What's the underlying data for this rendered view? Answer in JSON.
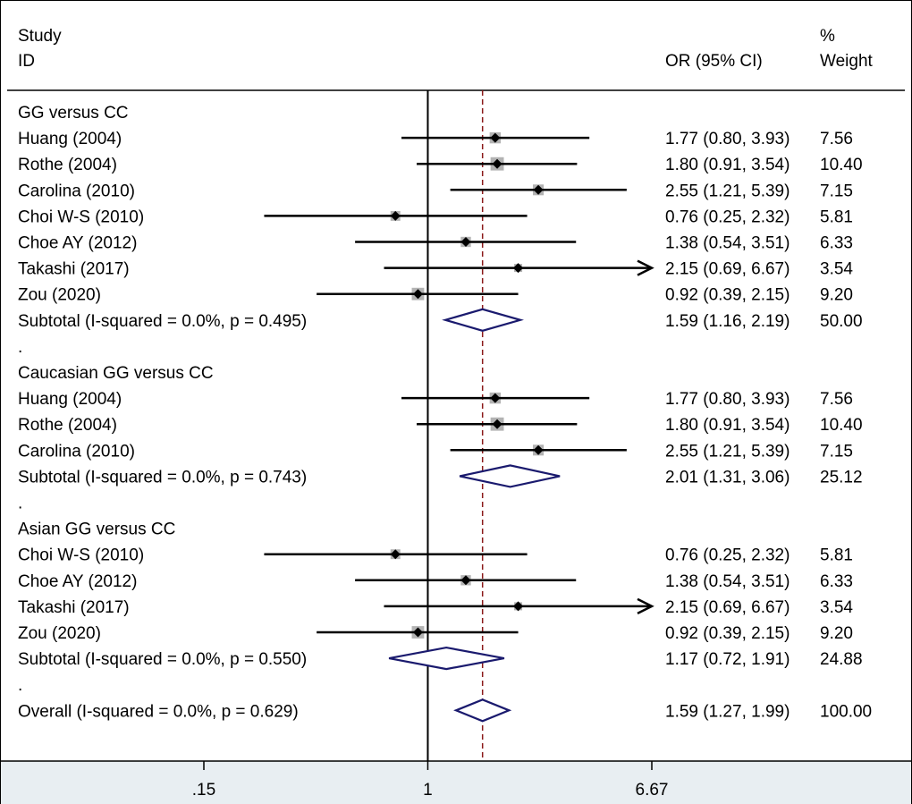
{
  "chart_data": {
    "type": "forest",
    "headers": {
      "study_line1": "Study",
      "study_line2": "ID",
      "or_label": "OR (95% CI)",
      "weight_line1": "%",
      "weight_line2": "Weight"
    },
    "x_scale": "log",
    "x_ticks": [
      {
        "value": 0.15,
        "label": ".15"
      },
      {
        "value": 1,
        "label": "1"
      },
      {
        "value": 6.67,
        "label": "6.67"
      }
    ],
    "xlim": [
      0.15,
      6.67
    ],
    "null_value": 1,
    "overall_or": 1.59,
    "rows": [
      {
        "kind": "group",
        "label": "GG versus CC"
      },
      {
        "kind": "study",
        "label": "Huang  (2004)",
        "or": 1.77,
        "lo": 0.8,
        "hi": 3.93,
        "or_text": "1.77 (0.80, 3.93)",
        "weight": "7.56"
      },
      {
        "kind": "study",
        "label": "Rothe (2004)",
        "or": 1.8,
        "lo": 0.91,
        "hi": 3.54,
        "or_text": "1.80 (0.91, 3.54)",
        "weight": "10.40"
      },
      {
        "kind": "study",
        "label": "Carolina (2010)",
        "or": 2.55,
        "lo": 1.21,
        "hi": 5.39,
        "or_text": "2.55 (1.21, 5.39)",
        "weight": "7.15"
      },
      {
        "kind": "study",
        "label": "Choi W-S (2010)",
        "or": 0.76,
        "lo": 0.25,
        "hi": 2.32,
        "or_text": "0.76 (0.25, 2.32)",
        "weight": "5.81"
      },
      {
        "kind": "study",
        "label": "Choe AY (2012)",
        "or": 1.38,
        "lo": 0.54,
        "hi": 3.51,
        "or_text": "1.38 (0.54, 3.51)",
        "weight": "6.33"
      },
      {
        "kind": "study",
        "label": "Takashi (2017)",
        "or": 2.15,
        "lo": 0.69,
        "hi": 6.67,
        "or_text": "2.15 (0.69, 6.67)",
        "weight": "3.54",
        "arrow": true
      },
      {
        "kind": "study",
        "label": "Zou (2020)",
        "or": 0.92,
        "lo": 0.39,
        "hi": 2.15,
        "or_text": "0.92 (0.39, 2.15)",
        "weight": "9.20"
      },
      {
        "kind": "subtotal",
        "label": "Subtotal  (I-squared = 0.0%, p = 0.495)",
        "or": 1.59,
        "lo": 1.16,
        "hi": 2.19,
        "or_text": "1.59 (1.16, 2.19)",
        "weight": "50.00"
      },
      {
        "kind": "spacer",
        "label": "."
      },
      {
        "kind": "group",
        "label": "Caucasian GG versus CC"
      },
      {
        "kind": "study",
        "label": "Huang  (2004)",
        "or": 1.77,
        "lo": 0.8,
        "hi": 3.93,
        "or_text": "1.77 (0.80, 3.93)",
        "weight": "7.56"
      },
      {
        "kind": "study",
        "label": "Rothe (2004)",
        "or": 1.8,
        "lo": 0.91,
        "hi": 3.54,
        "or_text": "1.80 (0.91, 3.54)",
        "weight": "10.40"
      },
      {
        "kind": "study",
        "label": "Carolina (2010)",
        "or": 2.55,
        "lo": 1.21,
        "hi": 5.39,
        "or_text": "2.55 (1.21, 5.39)",
        "weight": "7.15"
      },
      {
        "kind": "subtotal",
        "label": "Subtotal  (I-squared = 0.0%, p = 0.743)",
        "or": 2.01,
        "lo": 1.31,
        "hi": 3.06,
        "or_text": "2.01 (1.31, 3.06)",
        "weight": "25.12"
      },
      {
        "kind": "spacer",
        "label": "."
      },
      {
        "kind": "group",
        "label": "Asian GG versus CC"
      },
      {
        "kind": "study",
        "label": "Choi W-S (2010)",
        "or": 0.76,
        "lo": 0.25,
        "hi": 2.32,
        "or_text": "0.76 (0.25, 2.32)",
        "weight": "5.81"
      },
      {
        "kind": "study",
        "label": "Choe AY (2012)",
        "or": 1.38,
        "lo": 0.54,
        "hi": 3.51,
        "or_text": "1.38 (0.54, 3.51)",
        "weight": "6.33"
      },
      {
        "kind": "study",
        "label": "Takashi (2017)",
        "or": 2.15,
        "lo": 0.69,
        "hi": 6.67,
        "or_text": "2.15 (0.69, 6.67)",
        "weight": "3.54",
        "arrow": true
      },
      {
        "kind": "study",
        "label": "Zou (2020)",
        "or": 0.92,
        "lo": 0.39,
        "hi": 2.15,
        "or_text": "0.92 (0.39, 2.15)",
        "weight": "9.20"
      },
      {
        "kind": "subtotal",
        "label": "Subtotal  (I-squared = 0.0%, p = 0.550)",
        "or": 1.17,
        "lo": 0.72,
        "hi": 1.91,
        "or_text": "1.17 (0.72, 1.91)",
        "weight": "24.88"
      },
      {
        "kind": "spacer",
        "label": "."
      },
      {
        "kind": "overall",
        "label": "Overall  (I-squared = 0.0%, p = 0.629)",
        "or": 1.59,
        "lo": 1.27,
        "hi": 1.99,
        "or_text": "1.59 (1.27, 1.99)",
        "weight": "100.00"
      }
    ],
    "colors": {
      "diamond": "#1a1a6e",
      "null_line": "#000000",
      "overall_line": "#8b1a1a",
      "square": "#b3b3b3",
      "point": "#000000",
      "axis_band": "#e8eef2"
    }
  }
}
